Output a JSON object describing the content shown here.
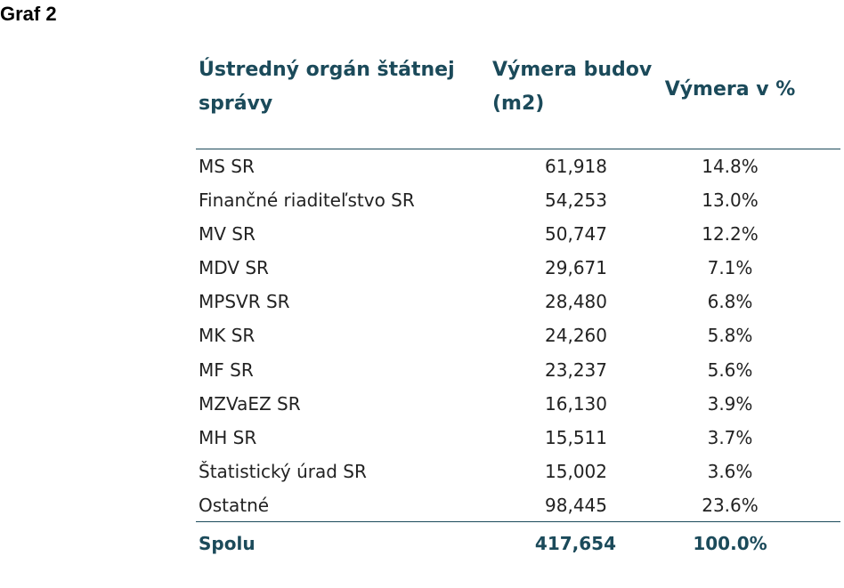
{
  "figure_label": "Graf 2",
  "chart_data": {
    "type": "table",
    "columns": [
      "Ústredný orgán štátnej správy",
      "Výmera budov (m2)",
      "Výmera v %"
    ],
    "rows": [
      {
        "org": "MS SR",
        "area": "61,918",
        "pct": "14.8%"
      },
      {
        "org": "Finančné riaditeľstvo SR",
        "area": "54,253",
        "pct": "13.0%"
      },
      {
        "org": "MV SR",
        "area": "50,747",
        "pct": "12.2%"
      },
      {
        "org": "MDV SR",
        "area": "29,671",
        "pct": "7.1%"
      },
      {
        "org": "MPSVR SR",
        "area": "28,480",
        "pct": "6.8%"
      },
      {
        "org": "MK SR",
        "area": "24,260",
        "pct": "5.8%"
      },
      {
        "org": "MF SR",
        "area": "23,237",
        "pct": "5.6%"
      },
      {
        "org": "MZVaEZ SR",
        "area": "16,130",
        "pct": "3.9%"
      },
      {
        "org": "MH SR",
        "area": "15,511",
        "pct": "3.7%"
      },
      {
        "org": "Štatistický úrad SR",
        "area": "15,002",
        "pct": "3.6%"
      },
      {
        "org": "Ostatné",
        "area": "98,445",
        "pct": "23.6%"
      }
    ],
    "total": {
      "org": "Spolu",
      "area": "417,654",
      "pct": "100.0%"
    }
  },
  "colors": {
    "header_text": "#1b4a5a",
    "body_text": "#222222",
    "rule": "#1b4a5a"
  }
}
